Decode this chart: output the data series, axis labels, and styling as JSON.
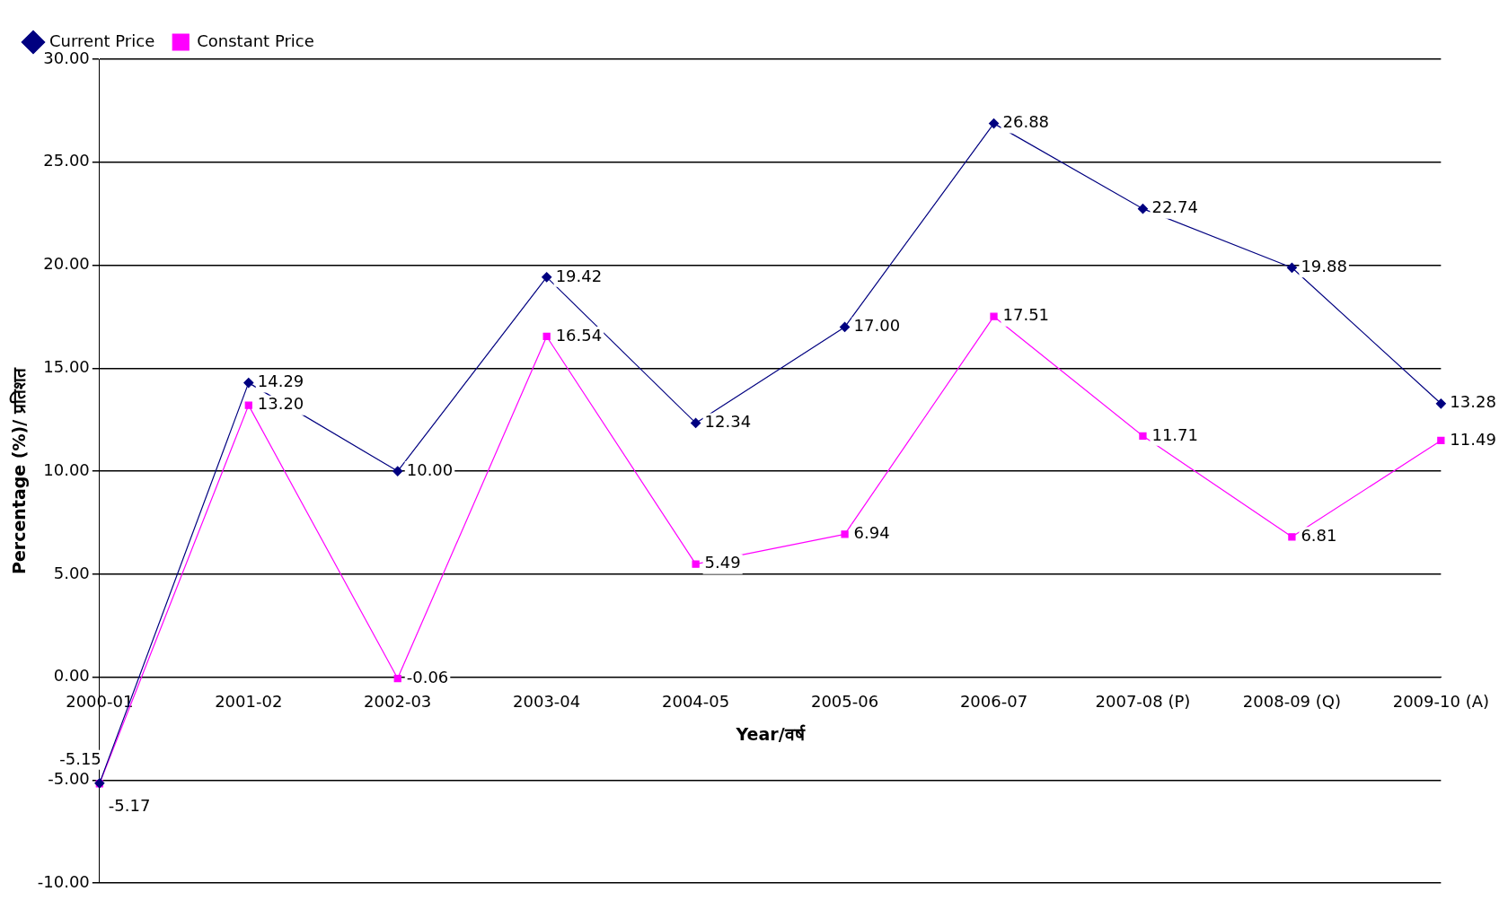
{
  "chart_data": {
    "type": "line",
    "xlabel": "Year/वर्ष",
    "ylabel": "Percentage (%)/ प्रतिशत",
    "categories": [
      "2000-01",
      "2001-02",
      "2002-03",
      "2003-04",
      "2004-05",
      "2005-06",
      "2006-07",
      "2007-08 (P)",
      "2008-09 (Q)",
      "2009-10 (A)"
    ],
    "series": [
      {
        "name": "Current Price",
        "color": "#000080",
        "marker": "diamond",
        "values": [
          -5.15,
          14.29,
          10.0,
          19.42,
          12.34,
          17.0,
          26.88,
          22.74,
          19.88,
          13.28
        ],
        "value_labels": [
          "-5.15",
          "14.29",
          "10.00",
          "19.42",
          "12.34",
          "17.00",
          "26.88",
          "22.74",
          "19.88",
          "13.28"
        ]
      },
      {
        "name": "Constant Price",
        "color": "#ff00ff",
        "marker": "square",
        "values": [
          -5.17,
          13.2,
          -0.06,
          16.54,
          5.49,
          6.94,
          17.51,
          11.71,
          6.81,
          11.49
        ],
        "value_labels": [
          "-5.17",
          "13.20",
          "-0.06",
          "16.54",
          "5.49",
          "6.94",
          "17.51",
          "11.71",
          "6.81",
          "11.49"
        ]
      }
    ],
    "ylim": [
      -10,
      30
    ],
    "yticks": [
      {
        "value": -10,
        "label": "-10.00"
      },
      {
        "value": -5,
        "label": "-5.00"
      },
      {
        "value": 0,
        "label": "0.00"
      },
      {
        "value": 5,
        "label": "5.00"
      },
      {
        "value": 10,
        "label": "10.00"
      },
      {
        "value": 15,
        "label": "15.00"
      },
      {
        "value": 20,
        "label": "20.00"
      },
      {
        "value": 25,
        "label": "25.00"
      },
      {
        "value": 30,
        "label": "30.00"
      }
    ],
    "grid": "y",
    "legend": "top left",
    "line_style": "solid"
  }
}
